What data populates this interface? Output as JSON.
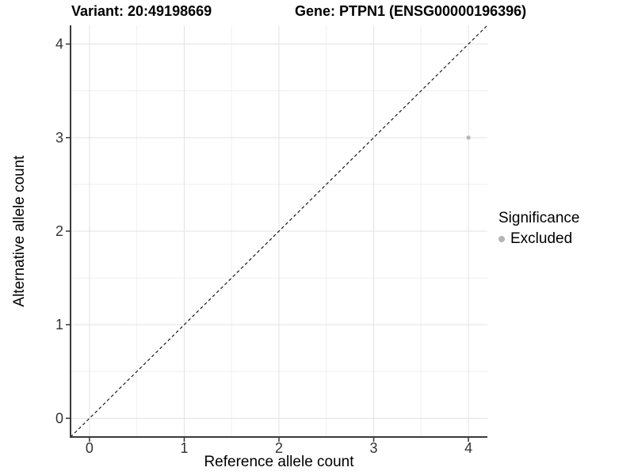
{
  "header": {
    "variant_title": "Variant: 20:49198669",
    "gene_title": "Gene: PTPN1 (ENSG00000196396)"
  },
  "chart_data": {
    "type": "scatter",
    "xlabel": "Reference allele count",
    "ylabel": "Alternative allele count",
    "x_ticks": [
      "0",
      "1",
      "2",
      "3",
      "4"
    ],
    "y_ticks": [
      "0",
      "1",
      "2",
      "3",
      "4"
    ],
    "x_tick_values": [
      0,
      1,
      2,
      3,
      4
    ],
    "y_tick_values": [
      0,
      1,
      2,
      3,
      4
    ],
    "xlim": [
      -0.2,
      4.2
    ],
    "ylim": [
      -0.2,
      4.2
    ],
    "grid": {
      "show_major": true,
      "show_minor": true,
      "major_color": "#e3e3e3",
      "minor_color": "#efefef"
    },
    "reference_line": {
      "style": "dashed",
      "slope": 1,
      "intercept": 0,
      "color": "#1a1a1a"
    },
    "points": [
      {
        "x": 4,
        "y": 3,
        "series": "Excluded",
        "color": "#b5b5b5"
      }
    ],
    "legend": {
      "title": "Significance",
      "position": "right",
      "items": [
        {
          "label": "Excluded",
          "color": "#b5b5b5"
        }
      ]
    },
    "colors": {
      "axis_line": "#3a3a3a",
      "tick_mark": "#333333",
      "tick_text": "#333333",
      "background": "#ffffff"
    }
  }
}
